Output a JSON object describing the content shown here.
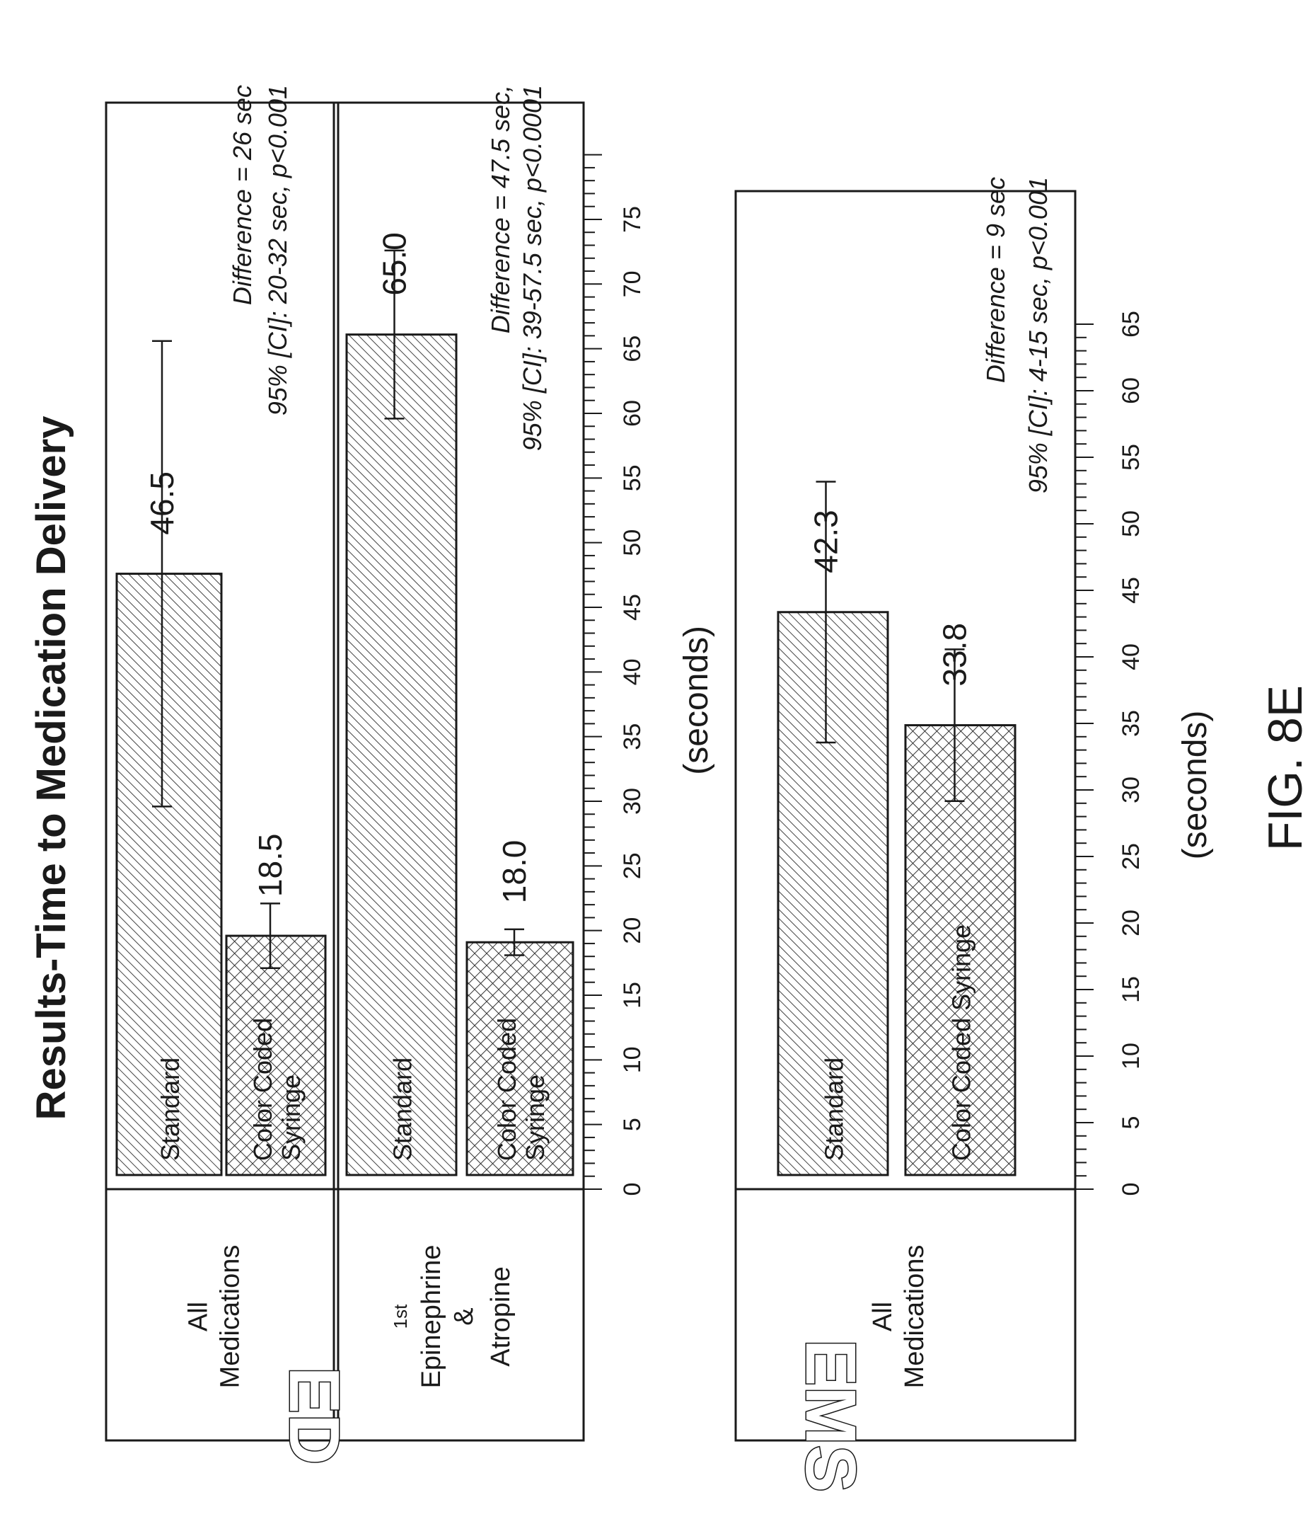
{
  "title": "Results-Time to Medication Delivery",
  "figure_label": "FIG. 8E",
  "colors": {
    "ink": "#1a1a1a",
    "background": "#ffffff",
    "standard_pattern": "diagonal hatch",
    "color_coded_pattern": "cross hatch"
  },
  "chart_data": [
    {
      "type": "bar",
      "orientation": "horizontal",
      "group_label": "ED",
      "xlabel": "(seconds)",
      "xlim": [
        0,
        80
      ],
      "tick_labels": [
        "0",
        "5",
        "10",
        "15",
        "20",
        "25",
        "30",
        "35",
        "40",
        "45",
        "50",
        "55",
        "60",
        "65",
        "70",
        "75"
      ],
      "panels": [
        {
          "row_label": "All Medications",
          "bars": [
            {
              "name": "Standard",
              "value": 46.5,
              "value_label": "46.5",
              "ci": [
                28.5,
                64.5
              ],
              "pattern": "diagonal"
            },
            {
              "name": "Color Coded Syringe",
              "value": 18.5,
              "value_label": "18.5",
              "ci": [
                16,
                21
              ],
              "pattern": "cross"
            }
          ],
          "annotation": [
            "Difference = 26 sec",
            "95% [CI]: 20-32 sec, p<0.001"
          ]
        },
        {
          "row_label": "1st Epinephrine & Atropine",
          "bars": [
            {
              "name": "Standard",
              "value": 65.0,
              "value_label": "65.0",
              "ci": [
                58.5,
                71.5
              ],
              "pattern": "diagonal"
            },
            {
              "name": "Color Coded Syringe",
              "value": 18.0,
              "value_label": "18.0",
              "ci": [
                17,
                19
              ],
              "pattern": "cross"
            }
          ],
          "annotation": [
            "Difference = 47.5 sec,",
            "95% [CI]: 39-57.5 sec, p<0.0001"
          ]
        }
      ]
    },
    {
      "type": "bar",
      "orientation": "horizontal",
      "group_label": "EMS",
      "xlabel": "(seconds)",
      "xlim": [
        0,
        65
      ],
      "tick_labels": [
        "0",
        "5",
        "10",
        "15",
        "20",
        "25",
        "30",
        "35",
        "40",
        "45",
        "50",
        "55",
        "60",
        "65"
      ],
      "panels": [
        {
          "row_label": "All Medications",
          "bars": [
            {
              "name": "Standard",
              "value": 42.3,
              "value_label": "42.3",
              "ci": [
                32.5,
                52.1
              ],
              "pattern": "diagonal"
            },
            {
              "name": "Color Coded Syringe",
              "value": 33.8,
              "value_label": "33.8",
              "ci": [
                28.1,
                39.5
              ],
              "pattern": "cross"
            }
          ],
          "annotation": [
            "Difference = 9 sec",
            "95% [CI]: 4-15 sec, p<0.001"
          ]
        }
      ]
    }
  ]
}
